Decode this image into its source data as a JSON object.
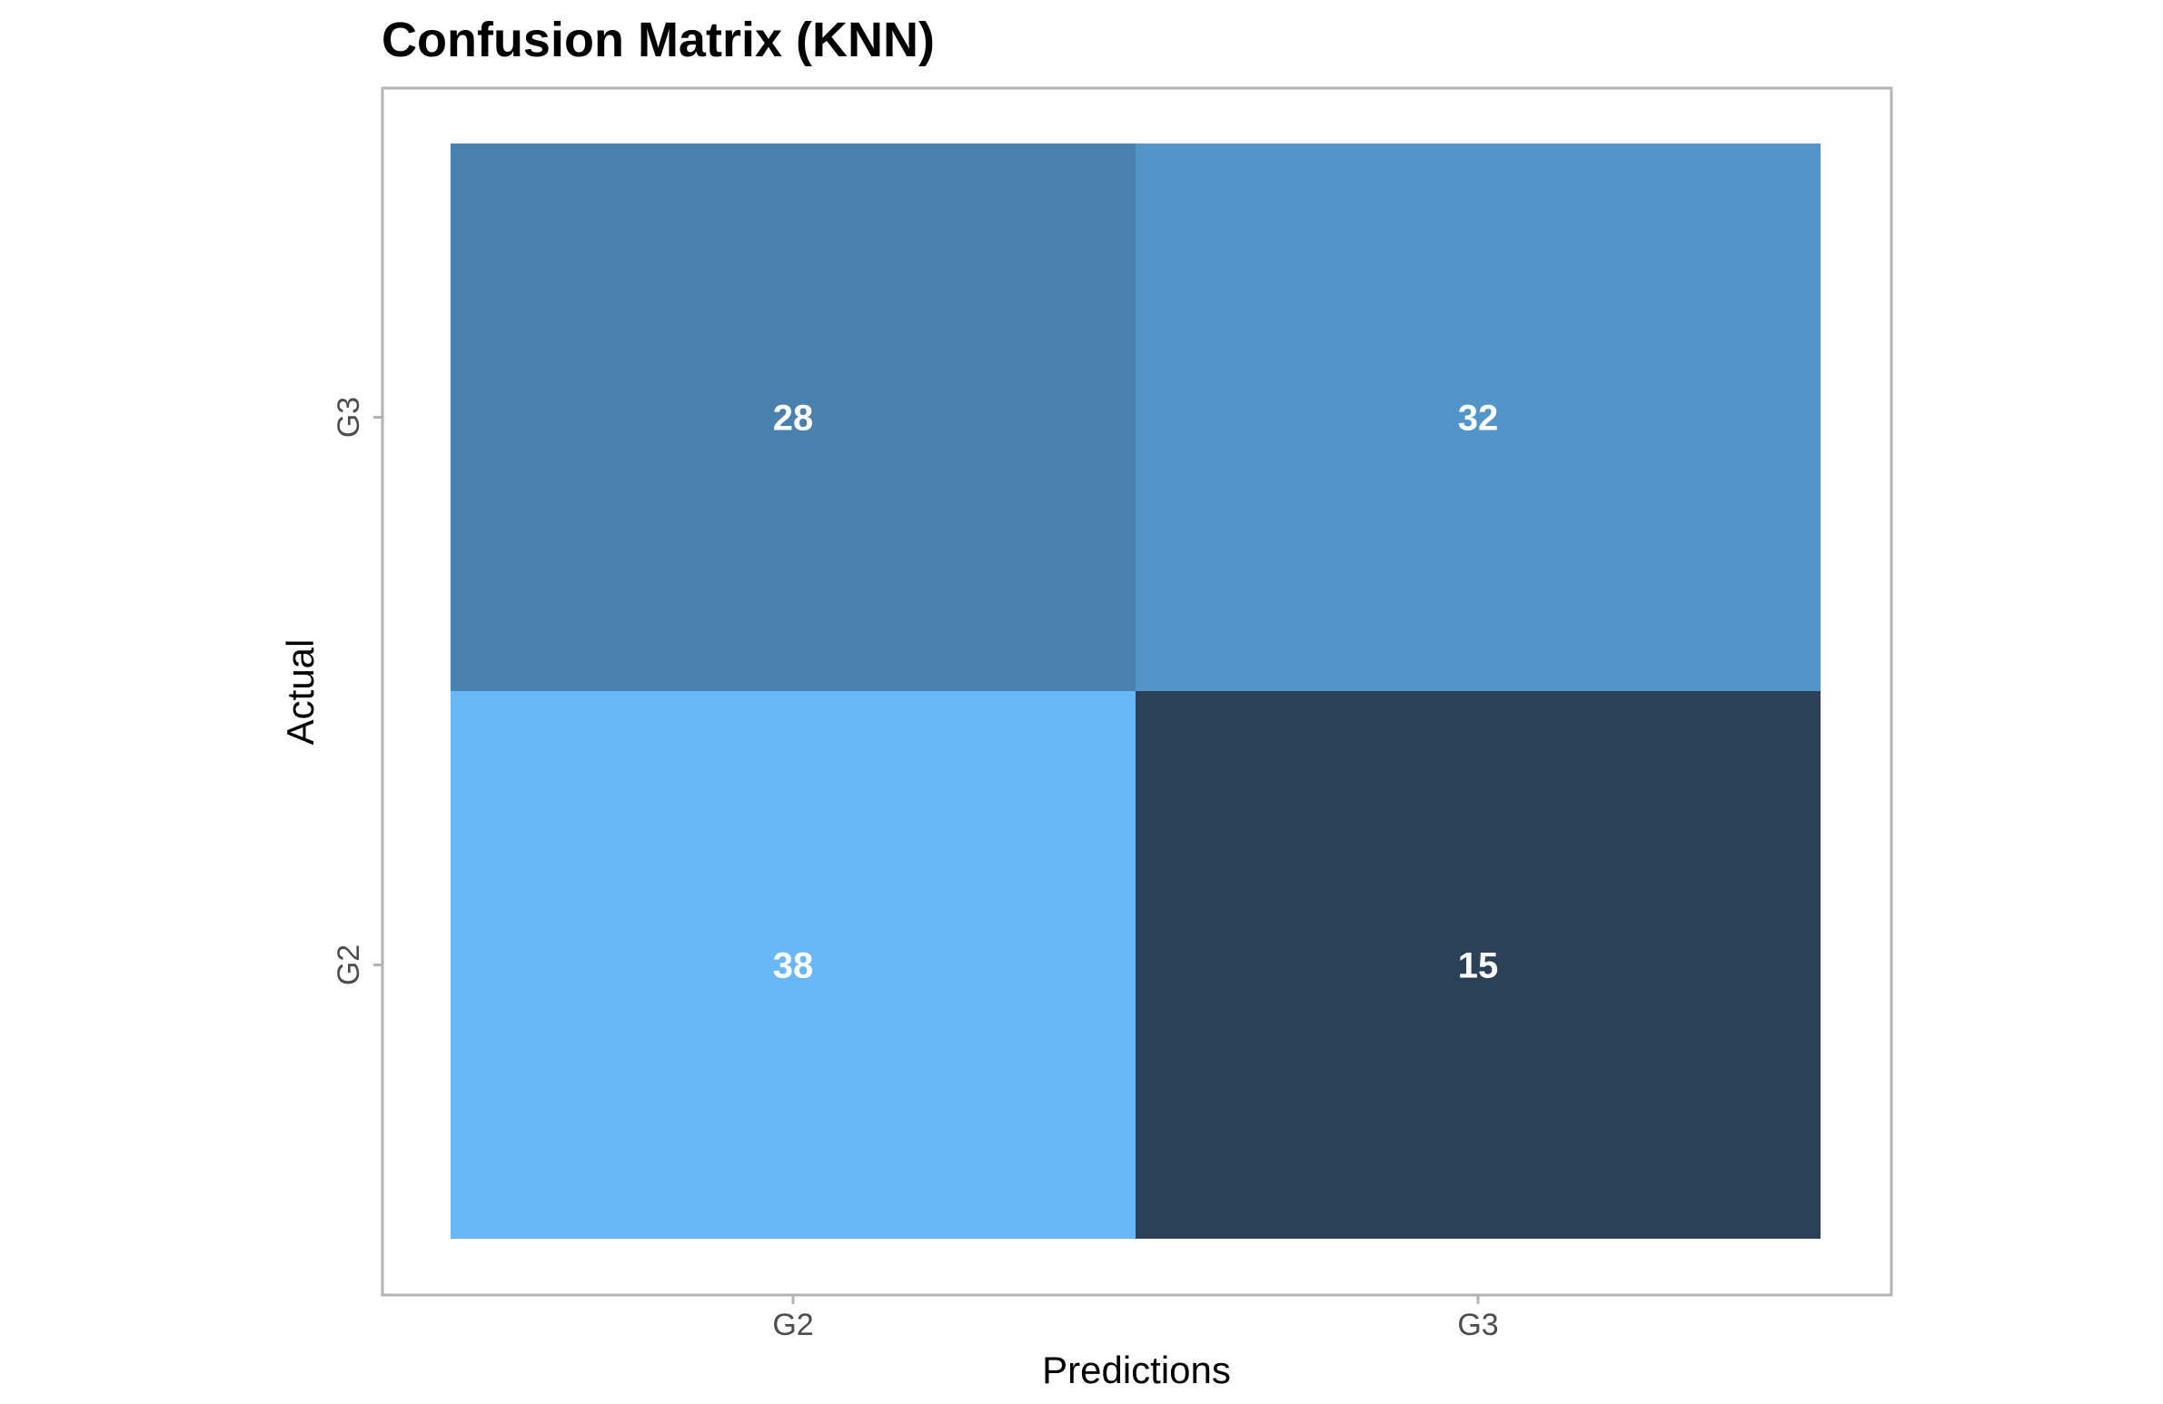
{
  "chart_data": {
    "type": "heatmap",
    "title": "Confusion Matrix (KNN)",
    "xlabel": "Predictions",
    "ylabel": "Actual",
    "x_categories": [
      "G2",
      "G3"
    ],
    "y_categories": [
      "G2",
      "G3"
    ],
    "cells": [
      {
        "x": "G2",
        "y": "G3",
        "value": 28,
        "label": "28",
        "color": "#4a80ad"
      },
      {
        "x": "G3",
        "y": "G3",
        "value": 32,
        "label": "32",
        "color": "#5395c9"
      },
      {
        "x": "G2",
        "y": "G2",
        "value": 38,
        "label": "38",
        "color": "#68b8f7"
      },
      {
        "x": "G3",
        "y": "G2",
        "value": 15,
        "label": "15",
        "color": "#2b4157"
      }
    ],
    "color_scale": {
      "low": "#2b4157",
      "high": "#68b8f7"
    },
    "panel_border_color": "#b3b3b3",
    "grid": false,
    "legend": "none"
  }
}
